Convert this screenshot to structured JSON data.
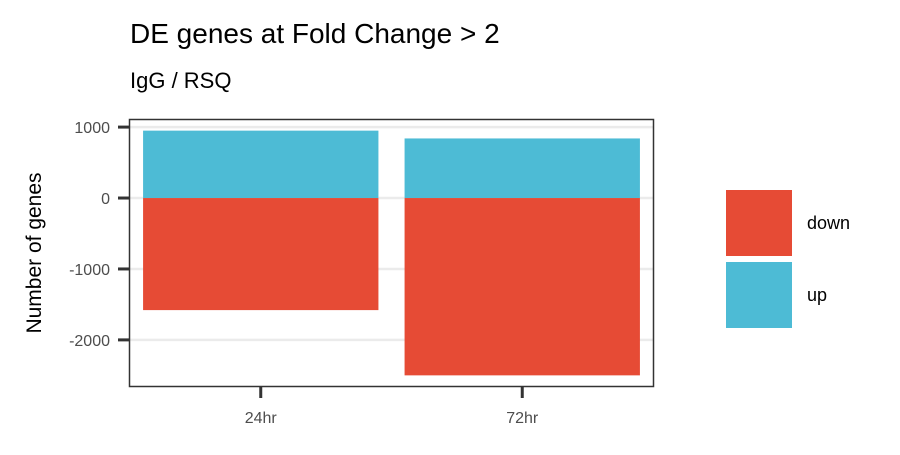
{
  "chart_data": {
    "type": "bar",
    "stacked": true,
    "title": "DE genes at Fold Change > 2",
    "subtitle": "IgG / RSQ",
    "xlabel": "",
    "ylabel": "Number of genes",
    "categories": [
      "24hr",
      "72hr"
    ],
    "series": [
      {
        "name": "down",
        "values": [
          -1580,
          -2500
        ],
        "color": "#E64B35"
      },
      {
        "name": "up",
        "values": [
          950,
          840
        ],
        "color": "#4DBBD5"
      }
    ],
    "ylim": [
      -2650,
      1100
    ],
    "yticks": [
      1000,
      0,
      -1000,
      -2000
    ],
    "ytick_labels": [
      "1000",
      "0",
      "-1000",
      "-2000"
    ],
    "grid": true,
    "legend_position": "right"
  }
}
